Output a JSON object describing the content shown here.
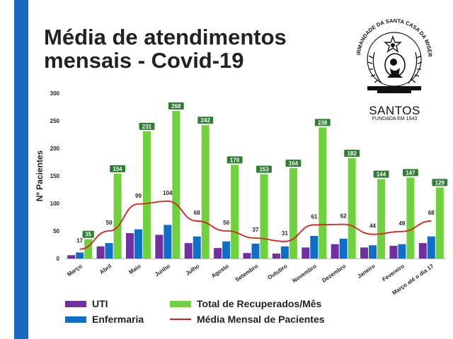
{
  "title": "Média de atendimentos mensais - Covid-19",
  "logo": {
    "ring_text": "IRMANDADE DA SANTA CASA DA MISERICÓRDIA",
    "city": "SANTOS",
    "founded": "FUNDADA EM 1543",
    "icon": "santa-casa-seal-icon"
  },
  "colors": {
    "accent_bar": "#1769c2",
    "uti": "#7030a0",
    "enfermaria": "#0f6fc6",
    "recuperados": "#6fd23c",
    "media": "#d62020",
    "label_box": "#2e7d32"
  },
  "legend": {
    "uti": "UTI",
    "enfermaria": "Enfermaria",
    "recuperados": "Total de Recuperados/Mês",
    "media": "Média Mensal de Pacientes"
  },
  "chart_data": {
    "type": "bar",
    "ylabel": "Nº Pacientes",
    "ylim": [
      0,
      300
    ],
    "yticks": [
      "0",
      "50",
      "100",
      "150",
      "200",
      "250",
      "300"
    ],
    "grid": false,
    "legend_position": "bottom",
    "categories": [
      "Março",
      "Abril",
      "Maio",
      "Junho",
      "Julho",
      "Agosto",
      "Setembro",
      "Outubro",
      "Novembro",
      "Dezembro",
      "Janeiro",
      "Fevereiro",
      "Março até o dia 17"
    ],
    "series": [
      {
        "name": "UTI",
        "type": "bar",
        "values": [
          6,
          22,
          46,
          43,
          28,
          19,
          10,
          9,
          20,
          26,
          20,
          23,
          28
        ]
      },
      {
        "name": "Enfermaria",
        "type": "bar",
        "values": [
          11,
          28,
          53,
          61,
          40,
          31,
          27,
          22,
          41,
          36,
          24,
          26,
          40
        ]
      },
      {
        "name": "Total de Recuperados/Mês",
        "type": "bar",
        "values": [
          35,
          154,
          231,
          268,
          242,
          170,
          153,
          164,
          238,
          182,
          144,
          147,
          129
        ],
        "labels": [
          "35",
          "154",
          "231",
          "268",
          "242",
          "170",
          "153",
          "164",
          "238",
          "182",
          "144",
          "147",
          "129"
        ]
      },
      {
        "name": "Média Mensal de Pacientes",
        "type": "line",
        "values": [
          17,
          50,
          99,
          104,
          68,
          50,
          37,
          31,
          61,
          62,
          44,
          49,
          68
        ],
        "labels": [
          "17",
          "50",
          "99",
          "104",
          "68",
          "50",
          "37",
          "31",
          "61",
          "62",
          "44",
          "49",
          "68"
        ]
      }
    ]
  }
}
